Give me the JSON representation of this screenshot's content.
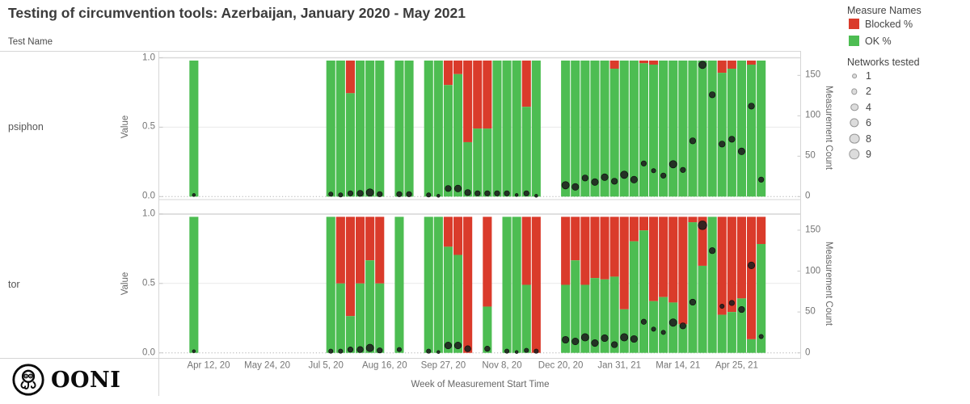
{
  "title": "Testing of circumvention tools: Azerbaijan, January 2020 - May 2021",
  "header": {
    "test_name_label": "Test Name"
  },
  "logo": {
    "text": "OONI",
    "icon": "ooni-octopus-icon"
  },
  "legend": {
    "measure_title": "Measure Names",
    "measures": [
      {
        "label": "Blocked %",
        "color": "#da3b2b"
      },
      {
        "label": "OK %",
        "color": "#4dbd52"
      }
    ],
    "networks_title": "Networks tested",
    "network_sizes": [
      1,
      2,
      4,
      6,
      8,
      9
    ]
  },
  "axes": {
    "value_label": "Value",
    "count_label": "Measurement Count",
    "value_ticks": [
      "1.0",
      "0.5",
      "0.0"
    ],
    "count_ticks": [
      "150",
      "100",
      "50",
      "0"
    ],
    "x_label": "Week of Measurement Start Time",
    "x_ticks": [
      {
        "week": 0,
        "label": "Apr 12, 20"
      },
      {
        "week": 6,
        "label": "May 24, 20"
      },
      {
        "week": 12,
        "label": "Jul 5, 20"
      },
      {
        "week": 18,
        "label": "Aug 16, 20"
      },
      {
        "week": 24,
        "label": "Sep 27, 20"
      },
      {
        "week": 30,
        "label": "Nov 8, 20"
      },
      {
        "week": 36,
        "label": "Dec 20, 20"
      },
      {
        "week": 42,
        "label": "Jan 31, 21"
      },
      {
        "week": 48,
        "label": "Mar 14, 21"
      },
      {
        "week": 54,
        "label": "Apr 25, 21"
      }
    ]
  },
  "colors": {
    "blocked": "#da3b2b",
    "ok": "#4dbd52",
    "dot": "#1f1f1f",
    "grid": "#e9e9e9",
    "grid_top": "#d9d9d9",
    "zero_dotted": "#b0b0b0",
    "border": "#d6d6d6"
  },
  "chart_data": {
    "type": "bar",
    "subtype": "stacked-percent-with-count-dots",
    "x_unit": "week offset from Apr 12, 2020 (tick weeks every 6)",
    "value_range": [
      0,
      1
    ],
    "count_range": [
      0,
      150
    ],
    "legend_position": "right",
    "panels": [
      {
        "test": "psiphon",
        "bars": [
          {
            "week": -2,
            "blocked": 0,
            "count": 2,
            "networks": 1
          },
          {
            "week": 12,
            "blocked": 0,
            "count": 3,
            "networks": 2
          },
          {
            "week": 13,
            "blocked": 0,
            "count": 2,
            "networks": 2
          },
          {
            "week": 14,
            "blocked": 0.24,
            "count": 4,
            "networks": 3
          },
          {
            "week": 15,
            "blocked": 0,
            "count": 4,
            "networks": 4
          },
          {
            "week": 16,
            "blocked": 0,
            "count": 5,
            "networks": 6
          },
          {
            "week": 17,
            "blocked": 0,
            "count": 3,
            "networks": 3
          },
          {
            "week": 19,
            "blocked": 0,
            "count": 3,
            "networks": 3
          },
          {
            "week": 20,
            "blocked": 0,
            "count": 3,
            "networks": 3
          },
          {
            "week": 22,
            "blocked": 0,
            "count": 2,
            "networks": 2
          },
          {
            "week": 23,
            "blocked": 0,
            "count": 1,
            "networks": 1
          },
          {
            "week": 24,
            "blocked": 0.18,
            "count": 10,
            "networks": 4
          },
          {
            "week": 25,
            "blocked": 0.1,
            "count": 10,
            "networks": 5
          },
          {
            "week": 26,
            "blocked": 0.6,
            "count": 5,
            "networks": 4
          },
          {
            "week": 27,
            "blocked": 0.5,
            "count": 4,
            "networks": 3
          },
          {
            "week": 28,
            "blocked": 0.5,
            "count": 4,
            "networks": 3
          },
          {
            "week": 29,
            "blocked": 0,
            "count": 4,
            "networks": 3
          },
          {
            "week": 30,
            "blocked": 0,
            "count": 4,
            "networks": 3
          },
          {
            "week": 31,
            "blocked": 0,
            "count": 2,
            "networks": 1
          },
          {
            "week": 32,
            "blocked": 0.34,
            "count": 4,
            "networks": 3
          },
          {
            "week": 33,
            "blocked": 0,
            "count": 1,
            "networks": 1
          },
          {
            "week": 36,
            "blocked": 0,
            "count": 14,
            "networks": 6
          },
          {
            "week": 37,
            "blocked": 0,
            "count": 12,
            "networks": 5
          },
          {
            "week": 38,
            "blocked": 0,
            "count": 23,
            "networks": 4
          },
          {
            "week": 39,
            "blocked": 0,
            "count": 18,
            "networks": 5
          },
          {
            "week": 40,
            "blocked": 0,
            "count": 24,
            "networks": 5
          },
          {
            "week": 41,
            "blocked": 0.06,
            "count": 19,
            "networks": 4
          },
          {
            "week": 42,
            "blocked": 0,
            "count": 27,
            "networks": 6
          },
          {
            "week": 43,
            "blocked": 0,
            "count": 21,
            "networks": 5
          },
          {
            "week": 44,
            "blocked": 0.02,
            "count": 41,
            "networks": 3
          },
          {
            "week": 45,
            "blocked": 0.03,
            "count": 32,
            "networks": 2
          },
          {
            "week": 46,
            "blocked": 0,
            "count": 26,
            "networks": 3
          },
          {
            "week": 47,
            "blocked": 0,
            "count": 40,
            "networks": 6
          },
          {
            "week": 48,
            "blocked": 0,
            "count": 33,
            "networks": 3
          },
          {
            "week": 49,
            "blocked": 0,
            "count": 69,
            "networks": 4
          },
          {
            "week": 50,
            "blocked": 0,
            "count": 163,
            "networks": 6
          },
          {
            "week": 51,
            "blocked": 0,
            "count": 126,
            "networks": 4
          },
          {
            "week": 52,
            "blocked": 0.09,
            "count": 65,
            "networks": 4
          },
          {
            "week": 53,
            "blocked": 0.06,
            "count": 71,
            "networks": 4
          },
          {
            "week": 54,
            "blocked": 0,
            "count": 56,
            "networks": 5
          },
          {
            "week": 55,
            "blocked": 0.03,
            "count": 112,
            "networks": 4
          },
          {
            "week": 56,
            "blocked": 0,
            "count": 21,
            "networks": 3
          }
        ]
      },
      {
        "test": "tor",
        "bars": [
          {
            "week": -2,
            "blocked": 0,
            "count": 2,
            "networks": 1
          },
          {
            "week": 12,
            "blocked": 0,
            "count": 2,
            "networks": 2
          },
          {
            "week": 13,
            "blocked": 0.49,
            "count": 2,
            "networks": 2
          },
          {
            "week": 14,
            "blocked": 0.73,
            "count": 4,
            "networks": 3
          },
          {
            "week": 15,
            "blocked": 0.49,
            "count": 4,
            "networks": 4
          },
          {
            "week": 16,
            "blocked": 0.32,
            "count": 6,
            "networks": 6
          },
          {
            "week": 17,
            "blocked": 0.49,
            "count": 3,
            "networks": 3
          },
          {
            "week": 19,
            "blocked": 0,
            "count": 4,
            "networks": 2
          },
          {
            "week": 22,
            "blocked": 0,
            "count": 2,
            "networks": 2
          },
          {
            "week": 23,
            "blocked": 0,
            "count": 1,
            "networks": 1
          },
          {
            "week": 24,
            "blocked": 0.22,
            "count": 9,
            "networks": 5
          },
          {
            "week": 25,
            "blocked": 0.28,
            "count": 9,
            "networks": 5
          },
          {
            "week": 26,
            "blocked": 1.0,
            "count": 5,
            "networks": 4
          },
          {
            "week": 28,
            "blocked": 0.66,
            "count": 5,
            "networks": 3
          },
          {
            "week": 30,
            "blocked": 0,
            "count": 2,
            "networks": 2
          },
          {
            "week": 31,
            "blocked": 0,
            "count": 1,
            "networks": 1
          },
          {
            "week": 32,
            "blocked": 0.5,
            "count": 3,
            "networks": 2
          },
          {
            "week": 33,
            "blocked": 1.0,
            "count": 2,
            "networks": 2
          },
          {
            "week": 36,
            "blocked": 0.5,
            "count": 16,
            "networks": 5
          },
          {
            "week": 37,
            "blocked": 0.32,
            "count": 14,
            "networks": 5
          },
          {
            "week": 38,
            "blocked": 0.5,
            "count": 19,
            "networks": 6
          },
          {
            "week": 39,
            "blocked": 0.45,
            "count": 12,
            "networks": 5
          },
          {
            "week": 40,
            "blocked": 0.46,
            "count": 18,
            "networks": 5
          },
          {
            "week": 41,
            "blocked": 0.44,
            "count": 10,
            "networks": 4
          },
          {
            "week": 42,
            "blocked": 0.68,
            "count": 19,
            "networks": 6
          },
          {
            "week": 43,
            "blocked": 0.18,
            "count": 17,
            "networks": 5
          },
          {
            "week": 44,
            "blocked": 0.1,
            "count": 38,
            "networks": 3
          },
          {
            "week": 45,
            "blocked": 0.62,
            "count": 29,
            "networks": 2
          },
          {
            "week": 46,
            "blocked": 0.59,
            "count": 25,
            "networks": 2
          },
          {
            "week": 47,
            "blocked": 0.63,
            "count": 37,
            "networks": 6
          },
          {
            "week": 48,
            "blocked": 0.79,
            "count": 33,
            "networks": 4
          },
          {
            "week": 49,
            "blocked": 0.04,
            "count": 62,
            "networks": 4
          },
          {
            "week": 50,
            "blocked": 0.36,
            "count": 156,
            "networks": 8
          },
          {
            "week": 51,
            "blocked": 0,
            "count": 125,
            "networks": 4
          },
          {
            "week": 52,
            "blocked": 0.72,
            "count": 57,
            "networks": 2
          },
          {
            "week": 53,
            "blocked": 0.7,
            "count": 61,
            "networks": 3
          },
          {
            "week": 54,
            "blocked": 0.6,
            "count": 53,
            "networks": 4
          },
          {
            "week": 55,
            "blocked": 0.9,
            "count": 107,
            "networks": 5
          },
          {
            "week": 56,
            "blocked": 0.2,
            "count": 20,
            "networks": 2
          }
        ]
      }
    ]
  }
}
